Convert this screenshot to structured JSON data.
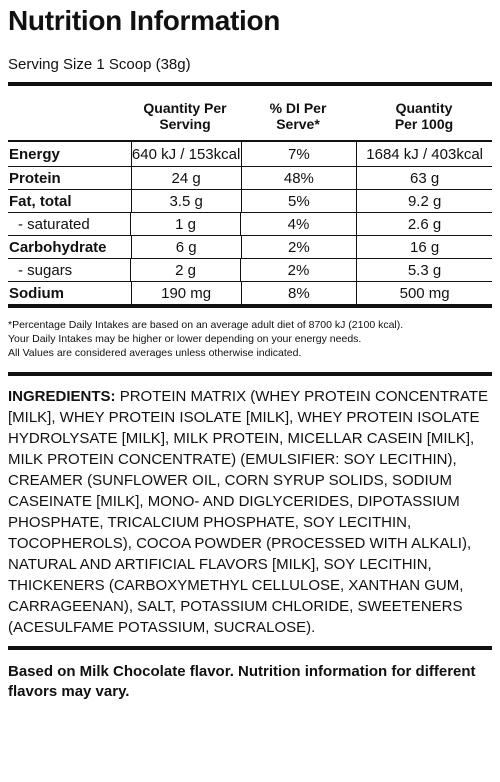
{
  "title": "Nutrition Information",
  "serving": "Serving Size 1 Scoop (38g)",
  "headers": {
    "col1": "Quantity Per Serving",
    "col1_l1": "Quantity Per",
    "col1_l2": "Serving",
    "col2_l1": "% DI Per",
    "col2_l2": "Serve*",
    "col3_l1": "Quantity",
    "col3_l2": "Per 100g"
  },
  "rows": [
    {
      "name": "Energy",
      "serving": "640 kJ / 153kcal",
      "di": "7%",
      "per100": "1684 kJ / 403kcal"
    },
    {
      "name": "Protein",
      "serving": "24 g",
      "di": "48%",
      "per100": "63 g"
    },
    {
      "name": "Fat, total",
      "serving": "3.5 g",
      "di": "5%",
      "per100": "9.2 g"
    },
    {
      "name": "- saturated",
      "serving": "1 g",
      "di": "4%",
      "per100": "2.6 g"
    },
    {
      "name": "Carbohydrate",
      "serving": "6 g",
      "di": "2%",
      "per100": "16 g"
    },
    {
      "name": "- sugars",
      "serving": "2 g",
      "di": "2%",
      "per100": "5.3 g"
    },
    {
      "name": "Sodium",
      "serving": "190 mg",
      "di": "8%",
      "per100": "500 mg"
    }
  ],
  "footnotes": [
    "*Percentage Daily Intakes are based on an average adult diet of 8700 kJ (2100 kcal).",
    "Your Daily Intakes may be higher or lower depending on your energy needs.",
    "All Values are considered averages unless otherwise indicated."
  ],
  "ingredients_label": "INGREDIENTS:",
  "ingredients_text": "PROTEIN MATRIX (WHEY PROTEIN CONCENTRATE [MILK], WHEY PROTEIN ISOLATE [MILK], WHEY PROTEIN ISOLATE HYDROLYSATE [MILK], MILK PROTEIN, MICELLAR CASEIN [MILK], MILK PROTEIN CONCENTRATE) (EMULSIFIER: SOY LECITHIN), CREAMER (SUNFLOWER OIL, CORN SYRUP SOLIDS, SODIUM CASEINATE [MILK], MONO- AND DIGLYCERIDES, DIPOTASSIUM PHOSPHATE, TRICALCIUM PHOSPHATE, SOY LECITHIN, TOCOPHEROLS), COCOA POWDER (PROCESSED WITH ALKALI), NATURAL AND ARTIFICIAL  FLAVORS [MILK], SOY LECITHIN, THICKENERS (CARBOXYMETHYL CELLULOSE, XANTHAN GUM, CARRAGEENAN), SALT, POTASSIUM CHLORIDE, SWEETENERS (ACESULFAME POTASSIUM, SUCRALOSE).",
  "based_on": "Based on Milk Chocolate flavor. Nutrition information for different flavors may vary."
}
